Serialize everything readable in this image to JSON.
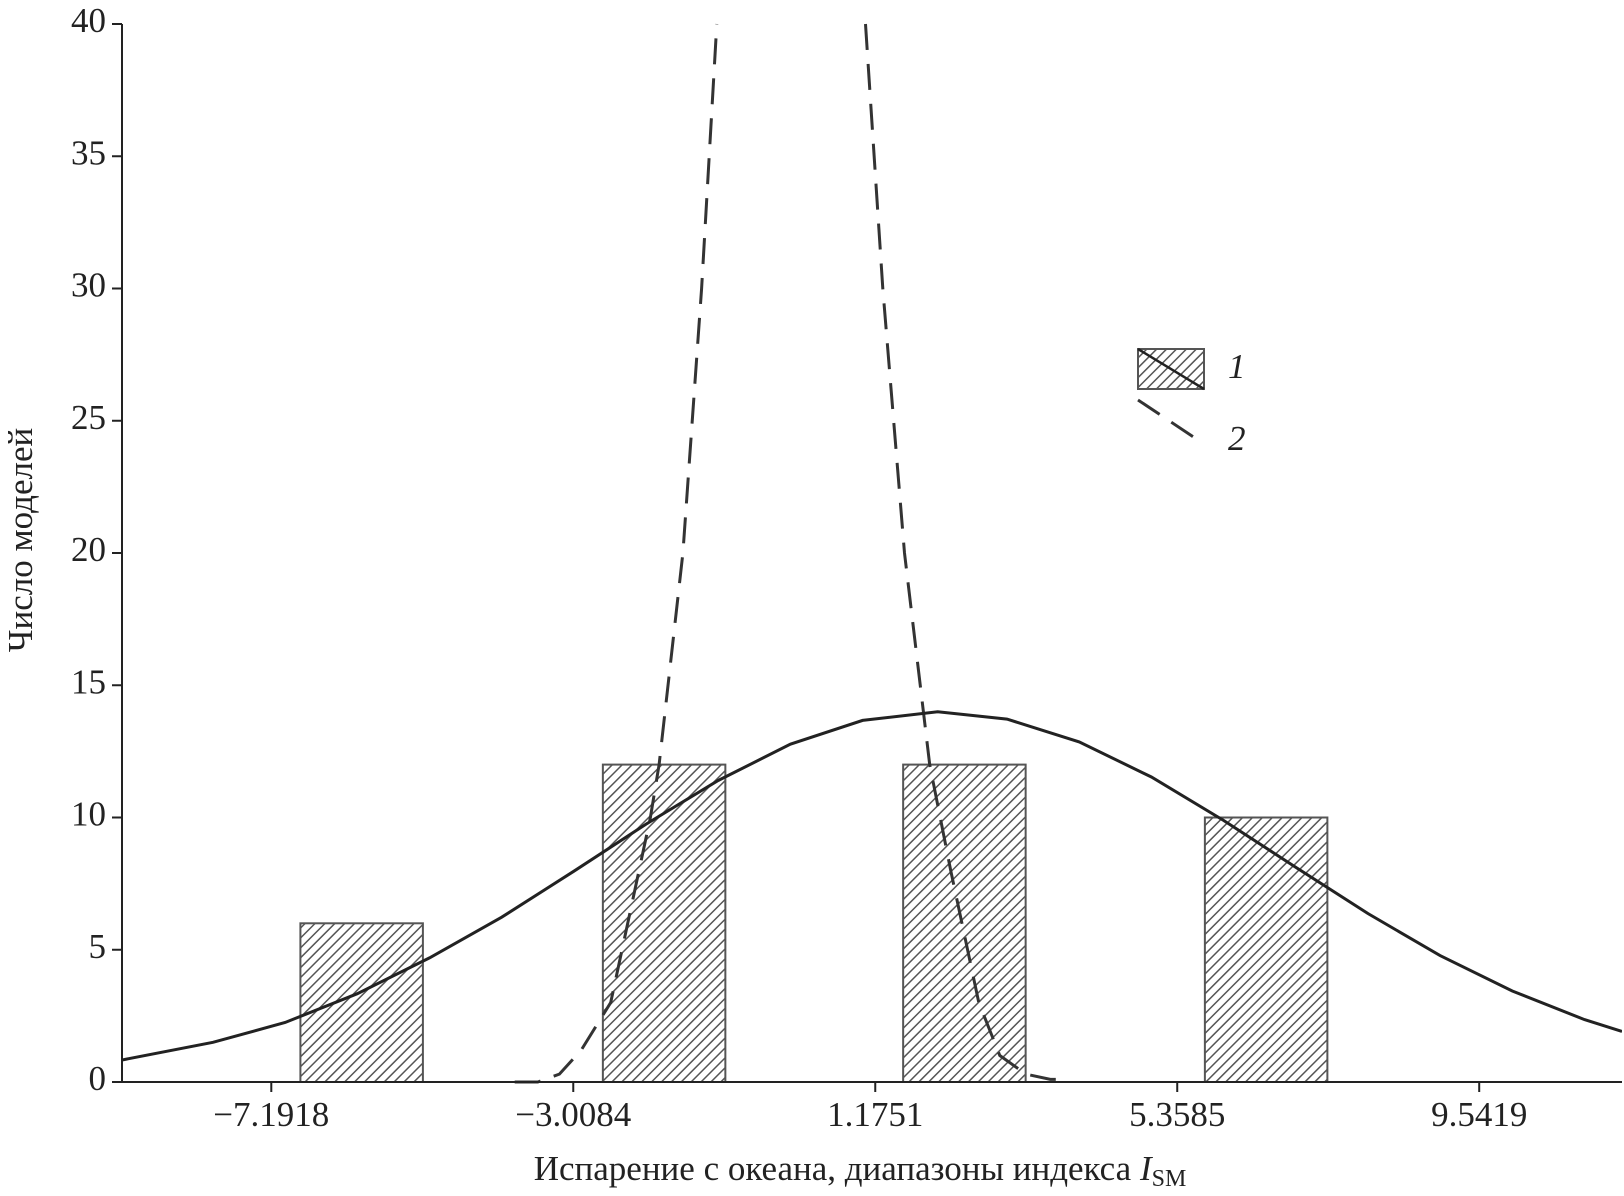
{
  "chart_data": {
    "type": "histogram",
    "y_label": "Число моделей",
    "x_label": "Испарение с океана, диапазоны индекса ",
    "x_label_var": "I",
    "x_label_sub": "SM",
    "xlim": [
      -9.26,
      11.52
    ],
    "ylim": [
      0,
      40
    ],
    "xticks": [
      {
        "value": -7.1918,
        "label": "−7.1918"
      },
      {
        "value": -3.0084,
        "label": "−3.0084"
      },
      1.1751,
      5.3585,
      9.5419
    ],
    "yticks": [
      0,
      5,
      10,
      15,
      20,
      25,
      30,
      35,
      40
    ],
    "bars": {
      "name": "1",
      "color": "#555555",
      "x": [
        -5.94,
        -1.75,
        2.41,
        6.59
      ],
      "values": [
        6,
        12,
        12,
        10
      ]
    },
    "lines": [
      {
        "name": "2",
        "style": "dashed",
        "color": "#333333",
        "x": [
          -3.82,
          -3.5,
          -3.2,
          -2.9,
          -2.49,
          -1.94,
          -1.82,
          -1.49,
          -1.23,
          -1.02,
          0,
          1.04,
          1.28,
          1.58,
          1.93,
          2.22,
          2.61,
          2.9,
          3.26,
          3.6,
          3.78
        ],
        "values": [
          0,
          0,
          0.3,
          1.2,
          3,
          10,
          12,
          20,
          30,
          40,
          null,
          40,
          30,
          20,
          12,
          8,
          3,
          1,
          0.3,
          0.1,
          0.1
        ]
      },
      {
        "style": "solid",
        "color": "#222222",
        "x": [
          -9.26,
          -8,
          -7,
          -6,
          -5,
          -4,
          -3,
          -2,
          -1,
          0,
          1,
          2.04,
          3,
          4,
          5,
          6,
          7,
          8,
          9,
          10,
          11,
          11.52
        ],
        "values": [
          0.83,
          1.5,
          2.25,
          3.34,
          4.69,
          6.23,
          7.97,
          9.75,
          11.4,
          12.77,
          13.67,
          14,
          13.72,
          12.86,
          11.53,
          9.89,
          8.12,
          6.37,
          4.78,
          3.44,
          2.36,
          1.91
        ]
      }
    ]
  }
}
